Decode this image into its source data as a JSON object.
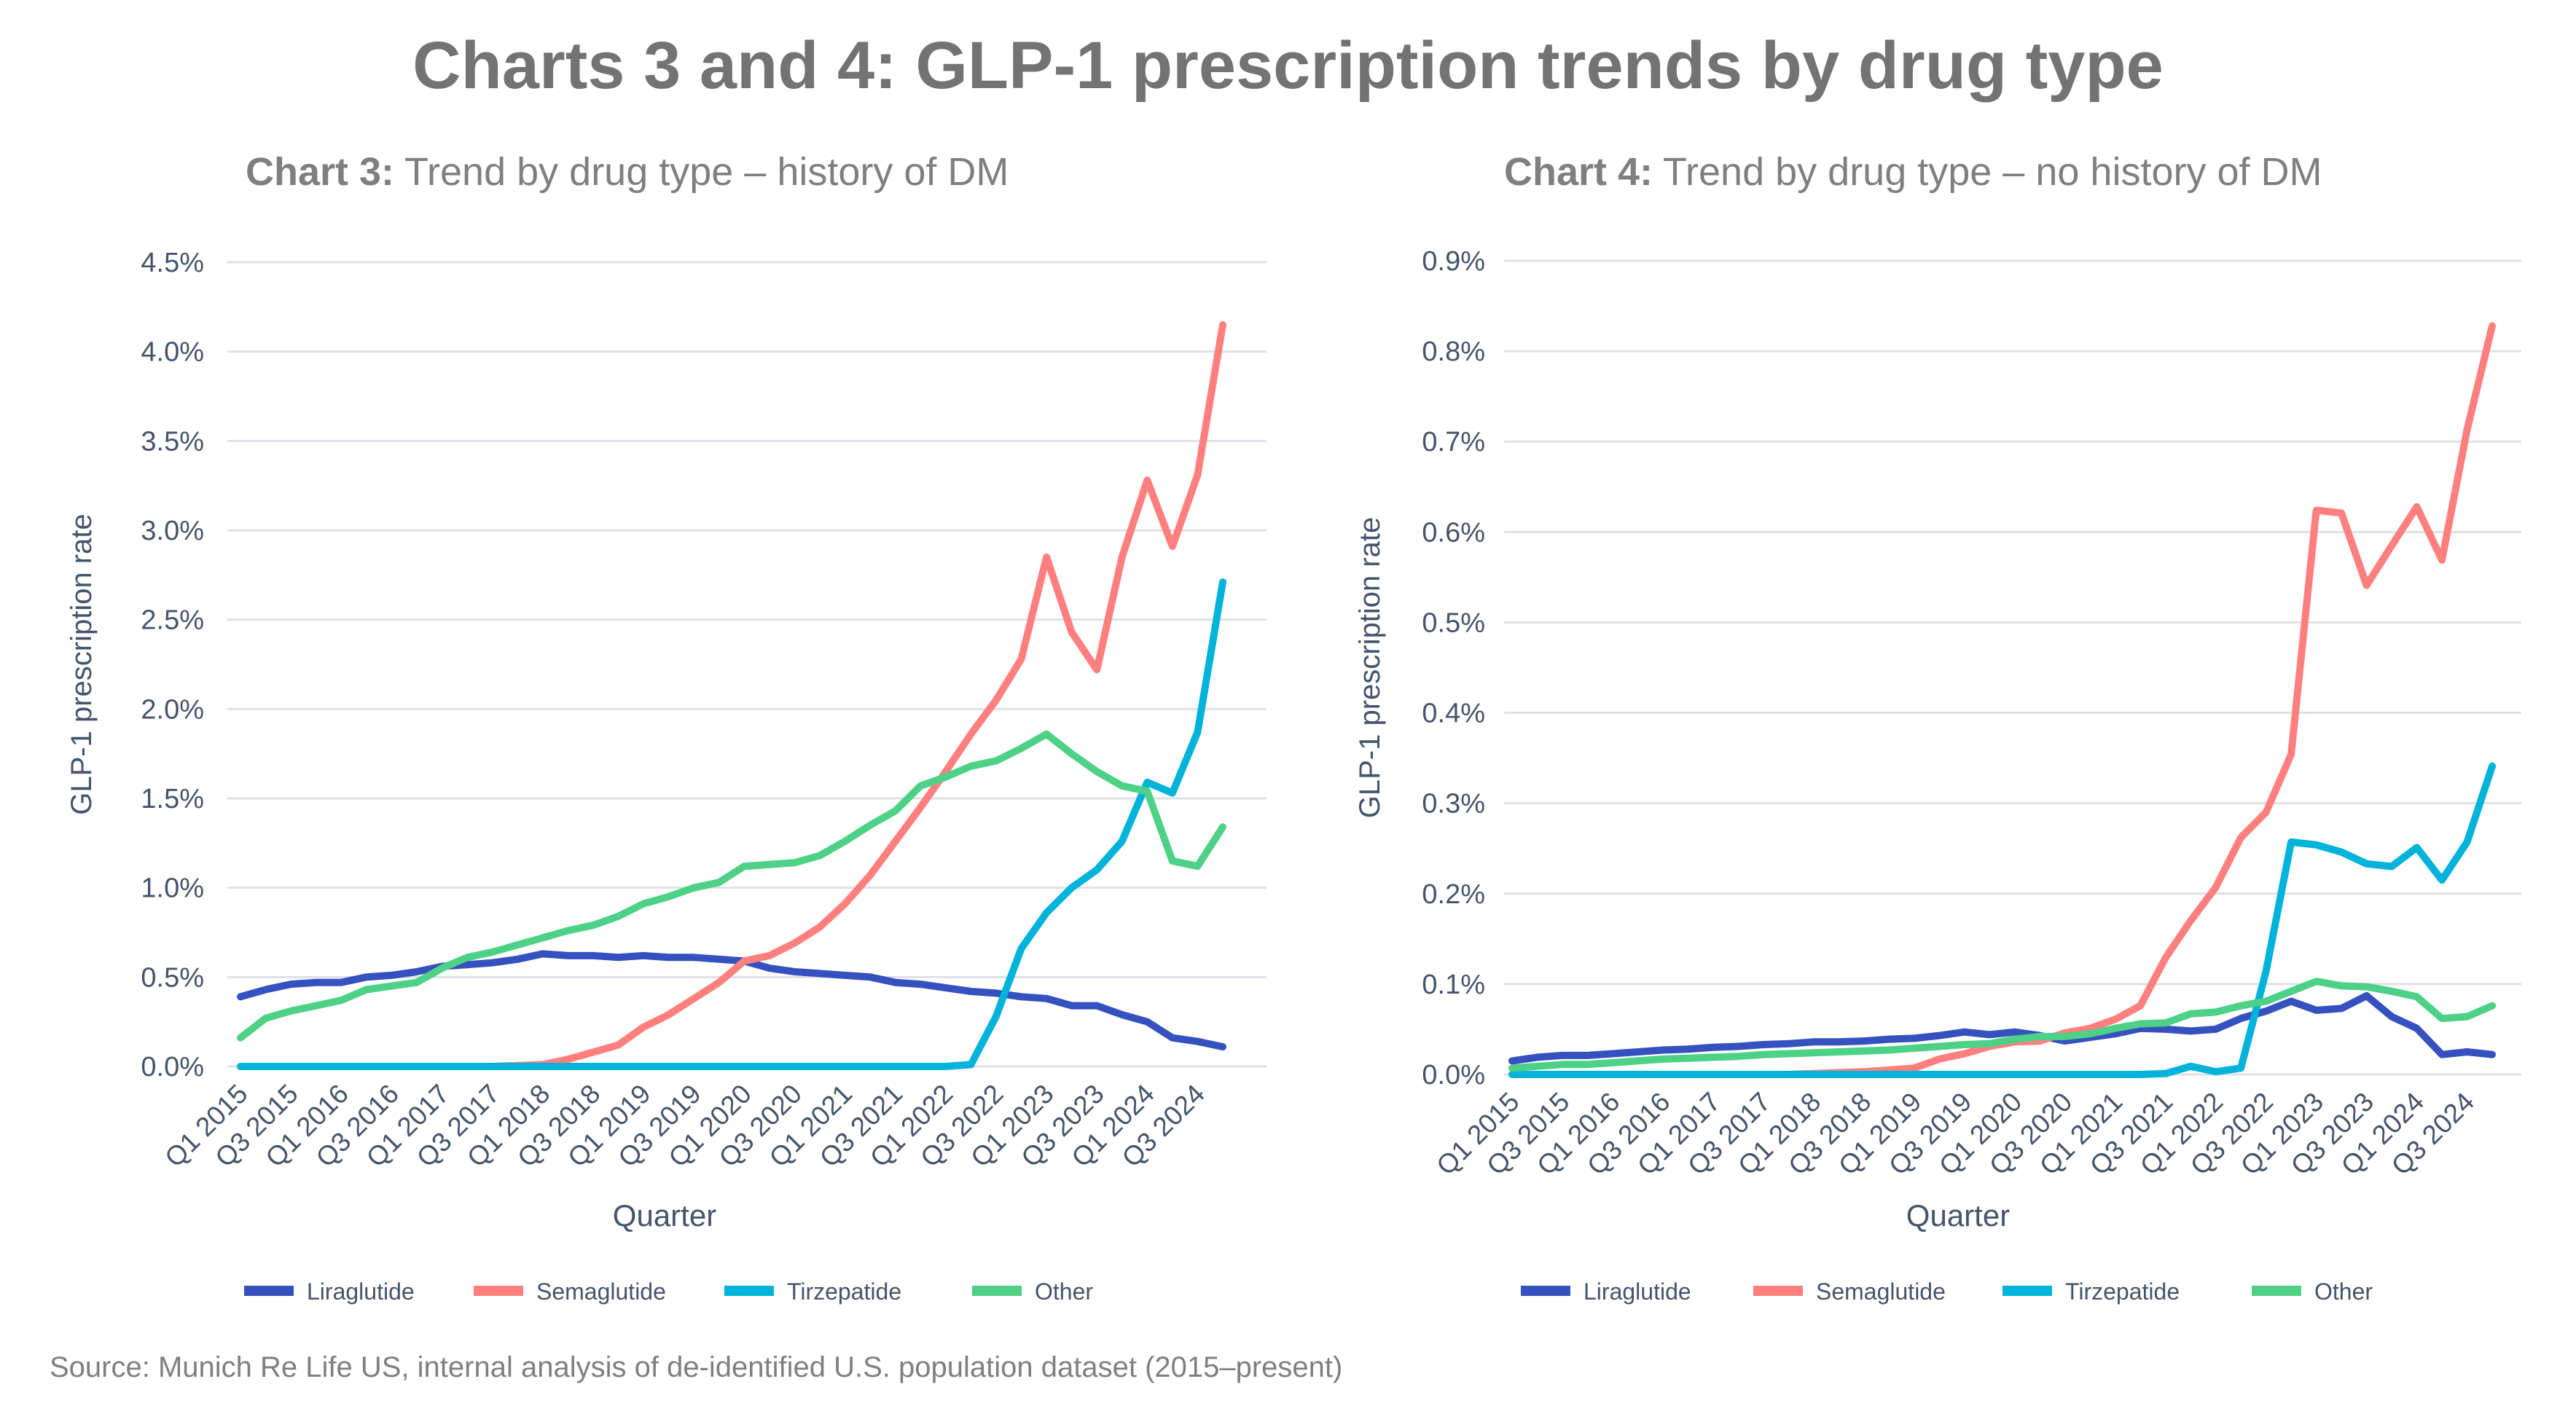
{
  "title": "Charts 3 and 4: GLP-1 prescription trends by drug type",
  "source": "Source: Munich Re Life US, internal analysis of de-identified U.S. population dataset (2015–present)",
  "colors": {
    "Liraglutide": "#3550bf",
    "Semaglutide": "#ff7f7e",
    "Tirzepatide": "#00b3da",
    "Other": "#4cd186",
    "grid": "#dde1e6"
  },
  "chart_data": [
    {
      "type": "line",
      "title_bold": "Chart 3:",
      "title_rest": " Trend by drug type – history of DM",
      "xlabel": "Quarter",
      "ylabel": "GLP-1 prescription rate",
      "ylim": [
        0,
        4.5
      ],
      "yticks": [
        0,
        0.5,
        1.0,
        1.5,
        2.0,
        2.5,
        3.0,
        3.5,
        4.0,
        4.5
      ],
      "ytick_labels": [
        "0.0%",
        "0.5%",
        "1.0%",
        "1.5%",
        "2.0%",
        "2.5%",
        "3.0%",
        "3.5%",
        "4.0%",
        "4.5%"
      ],
      "grid": true,
      "legend": "bottom",
      "x": [
        "Q1 2015",
        "Q2 2015",
        "Q3 2015",
        "Q4 2015",
        "Q1 2016",
        "Q2 2016",
        "Q3 2016",
        "Q4 2016",
        "Q1 2017",
        "Q2 2017",
        "Q3 2017",
        "Q4 2017",
        "Q1 2018",
        "Q2 2018",
        "Q3 2018",
        "Q4 2018",
        "Q1 2019",
        "Q2 2019",
        "Q3 2019",
        "Q4 2019",
        "Q1 2020",
        "Q2 2020",
        "Q3 2020",
        "Q4 2020",
        "Q1 2021",
        "Q2 2021",
        "Q3 2021",
        "Q4 2021",
        "Q1 2022",
        "Q2 2022",
        "Q3 2022",
        "Q4 2022",
        "Q1 2023",
        "Q2 2023",
        "Q3 2023",
        "Q4 2023",
        "Q1 2024",
        "Q2 2024",
        "Q3 2024",
        "Q4 2024"
      ],
      "xtick_labels": [
        "Q1 2015",
        "Q3 2015",
        "Q1 2016",
        "Q3 2016",
        "Q1 2017",
        "Q3 2017",
        "Q1 2018",
        "Q3 2018",
        "Q1 2019",
        "Q3 2019",
        "Q1 2020",
        "Q3 2020",
        "Q1 2021",
        "Q3 2021",
        "Q1 2022",
        "Q3 2022",
        "Q1 2023",
        "Q3 2023",
        "Q1 2024",
        "Q3 2024"
      ],
      "series": [
        {
          "name": "Liraglutide",
          "values": [
            0.39,
            0.43,
            0.46,
            0.47,
            0.47,
            0.5,
            0.51,
            0.53,
            0.56,
            0.57,
            0.58,
            0.6,
            0.63,
            0.62,
            0.62,
            0.61,
            0.62,
            0.61,
            0.61,
            0.6,
            0.59,
            0.55,
            0.53,
            0.52,
            0.51,
            0.5,
            0.47,
            0.46,
            0.44,
            0.42,
            0.41,
            0.39,
            0.38,
            0.34,
            0.34,
            0.29,
            0.25,
            0.16,
            0.14,
            0.11
          ]
        },
        {
          "name": "Semaglutide",
          "values": [
            0,
            0,
            0,
            0,
            0,
            0,
            0,
            0,
            0,
            0,
            0,
            0.005,
            0.01,
            0.04,
            0.08,
            0.12,
            0.22,
            0.29,
            0.38,
            0.47,
            0.59,
            0.62,
            0.69,
            0.78,
            0.91,
            1.07,
            1.26,
            1.45,
            1.65,
            1.86,
            2.05,
            2.28,
            2.85,
            2.43,
            2.22,
            2.85,
            3.28,
            2.91,
            3.31,
            4.15
          ]
        },
        {
          "name": "Tirzepatide",
          "values": [
            0,
            0,
            0,
            0,
            0,
            0,
            0,
            0,
            0,
            0,
            0,
            0,
            0,
            0,
            0,
            0,
            0,
            0,
            0,
            0,
            0,
            0,
            0,
            0,
            0,
            0,
            0,
            0,
            0,
            0.01,
            0.28,
            0.66,
            0.86,
            1.0,
            1.1,
            1.26,
            1.59,
            1.53,
            1.87,
            2.71
          ]
        },
        {
          "name": "Other",
          "values": [
            0.16,
            0.27,
            0.31,
            0.34,
            0.37,
            0.43,
            0.45,
            0.47,
            0.55,
            0.61,
            0.64,
            0.68,
            0.72,
            0.76,
            0.79,
            0.84,
            0.91,
            0.95,
            1.0,
            1.03,
            1.12,
            1.13,
            1.14,
            1.18,
            1.26,
            1.35,
            1.43,
            1.57,
            1.62,
            1.68,
            1.71,
            1.78,
            1.86,
            1.75,
            1.65,
            1.57,
            1.54,
            1.15,
            1.12,
            1.34
          ]
        }
      ]
    },
    {
      "type": "line",
      "title_bold": "Chart 4:",
      "title_rest": " Trend by drug type – no history of DM",
      "xlabel": "Quarter",
      "ylabel": "GLP-1 prescription rate",
      "ylim": [
        0,
        0.9
      ],
      "yticks": [
        0,
        0.1,
        0.2,
        0.3,
        0.4,
        0.5,
        0.6,
        0.7,
        0.8,
        0.9
      ],
      "ytick_labels": [
        "0.0%",
        "0.1%",
        "0.2%",
        "0.3%",
        "0.4%",
        "0.5%",
        "0.6%",
        "0.7%",
        "0.8%",
        "0.9%"
      ],
      "grid": true,
      "legend": "bottom",
      "x": [
        "Q1 2015",
        "Q2 2015",
        "Q3 2015",
        "Q4 2015",
        "Q1 2016",
        "Q2 2016",
        "Q3 2016",
        "Q4 2016",
        "Q1 2017",
        "Q2 2017",
        "Q3 2017",
        "Q4 2017",
        "Q1 2018",
        "Q2 2018",
        "Q3 2018",
        "Q4 2018",
        "Q1 2019",
        "Q2 2019",
        "Q3 2019",
        "Q4 2019",
        "Q1 2020",
        "Q2 2020",
        "Q3 2020",
        "Q4 2020",
        "Q1 2021",
        "Q2 2021",
        "Q3 2021",
        "Q4 2021",
        "Q1 2022",
        "Q2 2022",
        "Q3 2022",
        "Q4 2022",
        "Q1 2023",
        "Q2 2023",
        "Q3 2023",
        "Q4 2023",
        "Q1 2024",
        "Q2 2024",
        "Q3 2024",
        "Q4 2024"
      ],
      "xtick_labels": [
        "Q1 2015",
        "Q3 2015",
        "Q1 2016",
        "Q3 2016",
        "Q1 2017",
        "Q3 2017",
        "Q1 2018",
        "Q3 2018",
        "Q1 2019",
        "Q3 2019",
        "Q1 2020",
        "Q3 2020",
        "Q1 2021",
        "Q3 2021",
        "Q1 2022",
        "Q3 2022",
        "Q1 2023",
        "Q3 2023",
        "Q1 2024",
        "Q3 2024"
      ],
      "series": [
        {
          "name": "Liraglutide",
          "values": [
            0.015,
            0.019,
            0.021,
            0.021,
            0.023,
            0.025,
            0.027,
            0.028,
            0.03,
            0.031,
            0.033,
            0.034,
            0.036,
            0.036,
            0.037,
            0.039,
            0.04,
            0.043,
            0.047,
            0.044,
            0.047,
            0.043,
            0.037,
            0.041,
            0.045,
            0.051,
            0.05,
            0.048,
            0.05,
            0.062,
            0.07,
            0.081,
            0.071,
            0.073,
            0.087,
            0.064,
            0.051,
            0.022,
            0.025,
            0.022
          ]
        },
        {
          "name": "Semaglutide",
          "values": [
            0,
            0,
            0,
            0,
            0,
            0,
            0,
            0,
            0,
            0,
            0,
            0,
            0.001,
            0.002,
            0.003,
            0.005,
            0.007,
            0.017,
            0.023,
            0.031,
            0.036,
            0.037,
            0.046,
            0.051,
            0.061,
            0.076,
            0.129,
            0.17,
            0.207,
            0.262,
            0.29,
            0.354,
            0.624,
            0.621,
            0.541,
            0.585,
            0.628,
            0.569,
            0.713,
            0.828
          ]
        },
        {
          "name": "Tirzepatide",
          "values": [
            0,
            0,
            0,
            0,
            0,
            0,
            0,
            0,
            0,
            0,
            0,
            0,
            0,
            0,
            0,
            0,
            0,
            0,
            0,
            0,
            0,
            0,
            0,
            0,
            0,
            0,
            0.001,
            0.009,
            0.003,
            0.007,
            0.114,
            0.257,
            0.254,
            0.246,
            0.233,
            0.23,
            0.251,
            0.215,
            0.257,
            0.341
          ]
        },
        {
          "name": "Other",
          "values": [
            0.007,
            0.009,
            0.011,
            0.011,
            0.013,
            0.015,
            0.017,
            0.018,
            0.019,
            0.02,
            0.022,
            0.023,
            0.024,
            0.025,
            0.026,
            0.027,
            0.029,
            0.031,
            0.033,
            0.034,
            0.039,
            0.042,
            0.042,
            0.045,
            0.051,
            0.056,
            0.057,
            0.067,
            0.069,
            0.076,
            0.081,
            0.092,
            0.103,
            0.098,
            0.097,
            0.092,
            0.086,
            0.062,
            0.064,
            0.076
          ]
        }
      ]
    }
  ]
}
